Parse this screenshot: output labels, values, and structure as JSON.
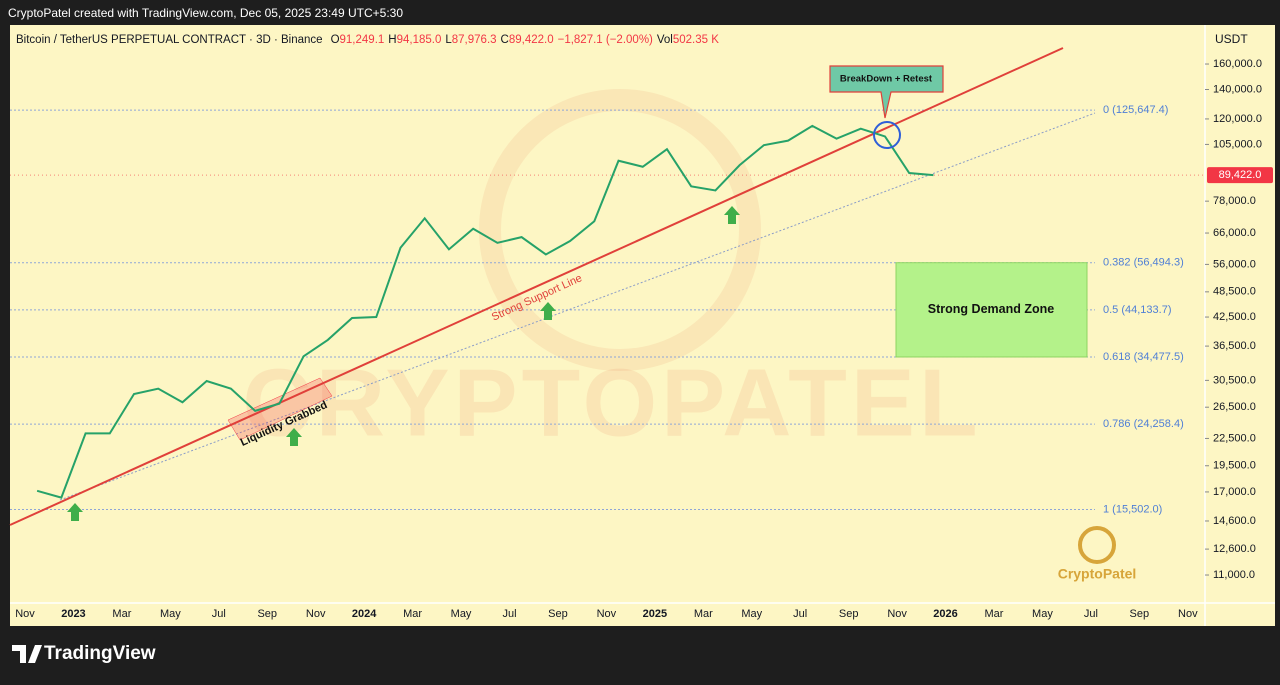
{
  "header": "CryptoPatel created with TradingView.com, Dec 05, 2025 23:49 UTC+5:30",
  "footer": "TradingView",
  "chart_data": {
    "type": "line",
    "title": "Bitcoin / TetherUS PERPETUAL CONTRACT · 3D · Binance",
    "ohlc": [
      {
        "name": "O",
        "label": "91,249.1"
      },
      {
        "name": "H",
        "label": "94,185.0"
      },
      {
        "name": "L",
        "label": "87,976.3"
      },
      {
        "name": "C",
        "label": "89,422.0"
      }
    ],
    "change": "−1,827.1 (−2.00%)",
    "volume": {
      "name": "Vol",
      "label": "502.35 K"
    },
    "currency": "USDT",
    "yscale": "log",
    "ylim": [
      9500,
      196300
    ],
    "yticks": [
      {
        "value": 160000,
        "label": "160,000.0"
      },
      {
        "value": 140000,
        "label": "140,000.0"
      },
      {
        "value": 120000,
        "label": "120,000.0"
      },
      {
        "value": 105000,
        "label": "105,000.0"
      },
      {
        "value": 78000,
        "label": "78,000.0"
      },
      {
        "value": 66000,
        "label": "66,000.0"
      },
      {
        "value": 56000,
        "label": "56,000.0"
      },
      {
        "value": 48500,
        "label": "48,500.0"
      },
      {
        "value": 42500,
        "label": "42,500.0"
      },
      {
        "value": 36500,
        "label": "36,500.0"
      },
      {
        "value": 30500,
        "label": "30,500.0"
      },
      {
        "value": 26500,
        "label": "26,500.0"
      },
      {
        "value": 22500,
        "label": "22,500.0"
      },
      {
        "value": 19500,
        "label": "19,500.0"
      },
      {
        "value": 17000,
        "label": "17,000.0"
      },
      {
        "value": 14600,
        "label": "14,600.0"
      },
      {
        "value": 12600,
        "label": "12,600.0"
      },
      {
        "value": 11000,
        "label": "11,000.0"
      }
    ],
    "categories": [
      "Nov",
      "2023",
      "Mar",
      "May",
      "Jul",
      "Sep",
      "Nov",
      "2024",
      "Mar",
      "May",
      "Jul",
      "Sep",
      "Nov",
      "2025",
      "Mar",
      "May",
      "Jul",
      "Sep",
      "Nov",
      "2026",
      "Mar",
      "May",
      "Jul",
      "Sep",
      "Nov"
    ],
    "x": [
      "2022-11",
      "2022-12",
      "2023-01",
      "2023-02",
      "2023-03",
      "2023-04",
      "2023-05",
      "2023-06",
      "2023-07",
      "2023-08",
      "2023-09",
      "2023-10",
      "2023-11",
      "2023-12",
      "2024-01",
      "2024-02",
      "2024-03",
      "2024-04",
      "2024-05",
      "2024-06",
      "2024-07",
      "2024-08",
      "2024-09",
      "2024-10",
      "2024-11",
      "2024-12",
      "2025-01",
      "2025-02",
      "2025-03",
      "2025-04",
      "2025-05",
      "2025-06",
      "2025-07",
      "2025-08",
      "2025-09",
      "2025-10",
      "2025-11",
      "2025-12"
    ],
    "series": [
      {
        "name": "Bitcoin / TetherUS",
        "color": "#26a269",
        "values": [
          17100,
          16500,
          23100,
          23100,
          28400,
          29200,
          27200,
          30400,
          29200,
          26000,
          27000,
          34600,
          37700,
          42300,
          42500,
          61100,
          71300,
          60600,
          67500,
          62700,
          64600,
          59000,
          63300,
          70200,
          96400,
          93400,
          102400,
          84300,
          82500,
          94200,
          104600,
          107100,
          115700,
          108200,
          114000,
          109500,
          90400,
          89422
        ]
      }
    ],
    "last_price": {
      "value": 89422,
      "label": "89,422.0",
      "color": "#f23645"
    },
    "fib_levels": [
      {
        "value": 125647.4,
        "label": "0 (125,647.4)"
      },
      {
        "value": 56494.3,
        "label": "0.382 (56,494.3)"
      },
      {
        "value": 44133.7,
        "label": "0.5 (44,133.7)"
      },
      {
        "value": 34477.5,
        "label": "0.618 (34,477.5)"
      },
      {
        "value": 24258.4,
        "label": "0.786 (24,258.4)"
      },
      {
        "value": 15502.0,
        "label": "1 (15,502.0)"
      }
    ],
    "annotations": {
      "demand_zone": "Strong Demand Zone",
      "callout": "BreakDown + Retest",
      "support": "Strong Support Line",
      "liquidity": "Liquidity Grabbed",
      "watermark": "CRYPTOPATEL",
      "logo": "CryptoPatel"
    }
  }
}
